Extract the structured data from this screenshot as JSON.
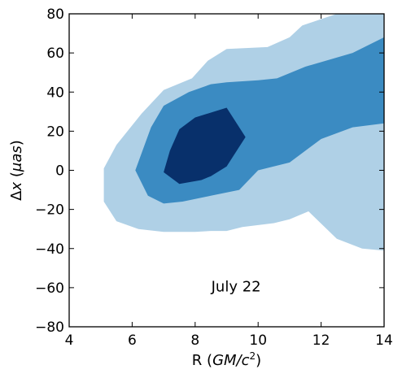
{
  "chart_data": {
    "type": "contour",
    "xlabel": "R (GM/c²)",
    "ylabel": "Δx (μas)",
    "xlim": [
      4,
      14
    ],
    "ylim": [
      -80,
      80
    ],
    "xticks": [
      4,
      6,
      8,
      10,
      12,
      14
    ],
    "yticks": [
      -80,
      -60,
      -40,
      -20,
      0,
      20,
      40,
      60,
      80
    ],
    "annotation": "July 22",
    "grid": false,
    "levels": [
      {
        "name": "outer",
        "color": "#afd0e6",
        "polygon": [
          [
            5.1,
            -5
          ],
          [
            5.1,
            -16
          ],
          [
            5.5,
            -26
          ],
          [
            6.2,
            -30
          ],
          [
            7,
            -31.5
          ],
          [
            8,
            -31.5
          ],
          [
            8.5,
            -31
          ],
          [
            9,
            -31
          ],
          [
            9.5,
            -29
          ],
          [
            10.5,
            -27
          ],
          [
            11,
            -25
          ],
          [
            11.6,
            -21
          ],
          [
            12.5,
            -35
          ],
          [
            13.3,
            -40
          ],
          [
            14,
            -41
          ],
          [
            14,
            -47
          ],
          [
            14,
            80
          ],
          [
            12.5,
            80
          ],
          [
            11.4,
            74
          ],
          [
            11,
            68
          ],
          [
            10.3,
            63
          ],
          [
            9,
            62
          ],
          [
            8.4,
            56
          ],
          [
            7.9,
            47
          ],
          [
            7,
            41
          ],
          [
            6.3,
            29
          ],
          [
            5.5,
            13
          ],
          [
            5.1,
            1
          ]
        ]
      },
      {
        "name": "middle",
        "color": "#3b8bc2",
        "polygon": [
          [
            6.1,
            0
          ],
          [
            6.5,
            -13
          ],
          [
            7,
            -17
          ],
          [
            7.6,
            -16
          ],
          [
            8.5,
            -13
          ],
          [
            9.4,
            -10
          ],
          [
            10,
            0
          ],
          [
            11,
            4
          ],
          [
            12,
            16
          ],
          [
            13,
            22
          ],
          [
            14,
            24
          ],
          [
            14,
            68
          ],
          [
            13,
            60
          ],
          [
            11.5,
            53
          ],
          [
            10.6,
            47
          ],
          [
            10,
            46
          ],
          [
            9,
            45
          ],
          [
            8.5,
            44
          ],
          [
            7.8,
            40
          ],
          [
            7,
            33
          ],
          [
            6.6,
            22
          ]
        ]
      },
      {
        "name": "inner",
        "color": "#08306b",
        "polygon": [
          [
            7,
            -1
          ],
          [
            7.5,
            -7
          ],
          [
            8.2,
            -5
          ],
          [
            8.5,
            -3
          ],
          [
            9,
            2
          ],
          [
            9.6,
            17
          ],
          [
            9,
            32
          ],
          [
            8,
            27
          ],
          [
            7.5,
            21
          ],
          [
            7.2,
            10
          ]
        ]
      }
    ]
  }
}
